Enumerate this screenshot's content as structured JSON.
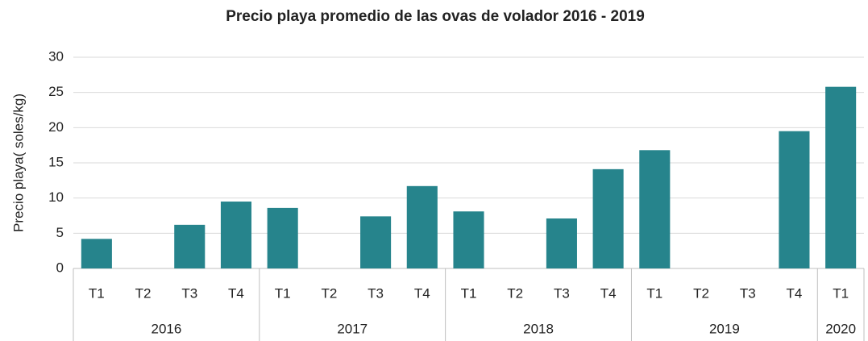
{
  "chart_data": {
    "type": "bar",
    "title": "Precio playa promedio de las ovas de volador 2016 - 2019",
    "y_label": "Precio playa( soles/kg)",
    "color": "#26848c",
    "grid": true,
    "ylim": [
      0,
      30
    ],
    "yticks": [
      0,
      5,
      10,
      15,
      20,
      25,
      30
    ],
    "groups": [
      {
        "label": "2016",
        "categories": [
          "T1",
          "T2",
          "T3",
          "T4"
        ],
        "values": [
          4.2,
          null,
          6.2,
          9.5
        ]
      },
      {
        "label": "2017",
        "categories": [
          "T1",
          "T2",
          "T3",
          "T4"
        ],
        "values": [
          8.6,
          null,
          7.4,
          11.7
        ]
      },
      {
        "label": "2018",
        "categories": [
          "T1",
          "T2",
          "T3",
          "T4"
        ],
        "values": [
          8.1,
          null,
          7.1,
          14.1
        ]
      },
      {
        "label": "2019",
        "categories": [
          "T1",
          "T2",
          "T3",
          "T4"
        ],
        "values": [
          16.8,
          null,
          null,
          19.5
        ]
      },
      {
        "label": "2020",
        "categories": [
          "T1"
        ],
        "values": [
          25.8
        ]
      }
    ]
  }
}
